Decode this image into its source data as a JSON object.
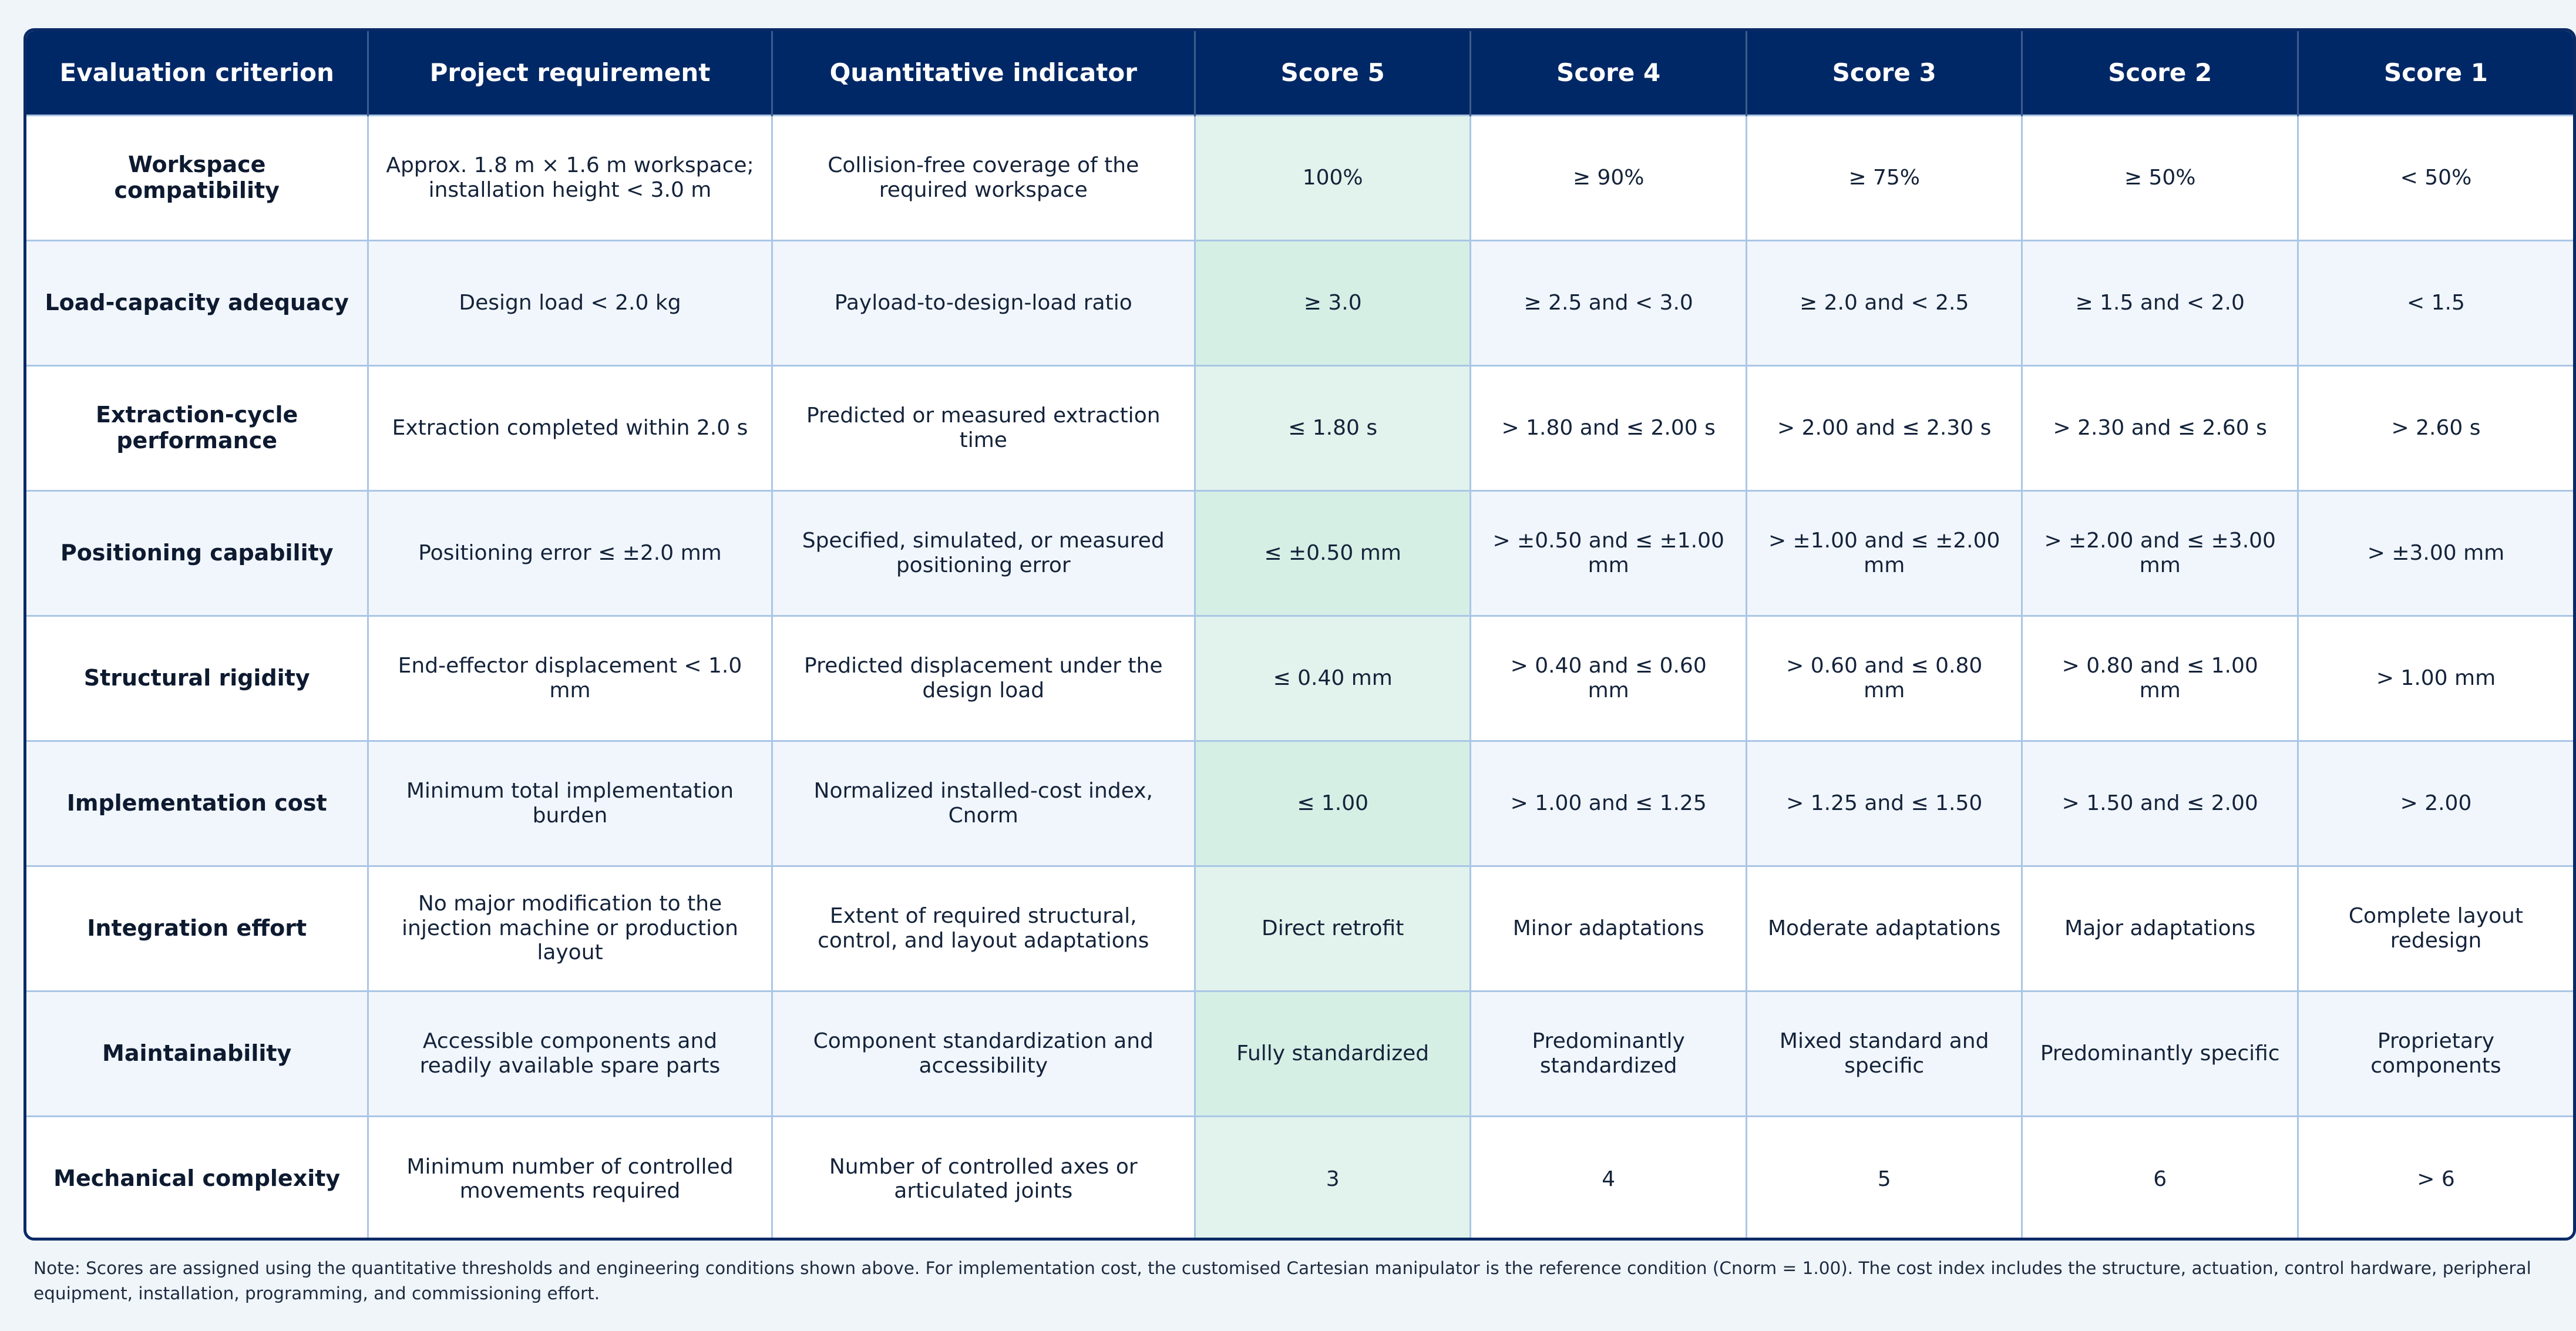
{
  "table": {
    "headers": [
      "Evaluation criterion",
      "Project requirement",
      "Quantitative indicator",
      "Score 5",
      "Score 4",
      "Score 3",
      "Score 2",
      "Score 1"
    ],
    "rows": [
      {
        "criterion": "Workspace compatibility",
        "requirement": "Approx. 1.8 m × 1.6 m workspace; installation height < 3.0 m",
        "indicator": "Collision-free coverage of the required workspace",
        "score5": "100%",
        "score4": "≥ 90%",
        "score3": "≥ 75%",
        "score2": "≥ 50%",
        "score1": "< 50%"
      },
      {
        "criterion": "Load-capacity adequacy",
        "requirement": "Design load < 2.0 kg",
        "indicator": "Payload-to-design-load ratio",
        "score5": "≥ 3.0",
        "score4": "≥ 2.5 and < 3.0",
        "score3": "≥ 2.0 and < 2.5",
        "score2": "≥ 1.5 and < 2.0",
        "score1": "< 1.5"
      },
      {
        "criterion": "Extraction-cycle performance",
        "requirement": "Extraction completed within 2.0 s",
        "indicator": "Predicted or measured extraction time",
        "score5": "≤ 1.80 s",
        "score4": "> 1.80 and ≤ 2.00 s",
        "score3": "> 2.00 and ≤ 2.30 s",
        "score2": "> 2.30 and ≤ 2.60 s",
        "score1": "> 2.60 s"
      },
      {
        "criterion": "Positioning capability",
        "requirement": "Positioning error ≤ ±2.0 mm",
        "indicator": "Specified, simulated, or measured positioning error",
        "score5": "≤ ±0.50 mm",
        "score4": "> ±0.50 and ≤ ±1.00 mm",
        "score3": "> ±1.00 and ≤ ±2.00 mm",
        "score2": "> ±2.00 and ≤ ±3.00 mm",
        "score1": "> ±3.00 mm"
      },
      {
        "criterion": "Structural rigidity",
        "requirement": "End-effector displacement < 1.0 mm",
        "indicator": "Predicted displacement under the design load",
        "score5": "≤ 0.40 mm",
        "score4": "> 0.40 and ≤ 0.60 mm",
        "score3": "> 0.60 and ≤ 0.80 mm",
        "score2": "> 0.80 and ≤ 1.00 mm",
        "score1": "> 1.00 mm"
      },
      {
        "criterion": "Implementation cost",
        "requirement": "Minimum total implementation burden",
        "indicator": "Normalized installed-cost index, Cnorm",
        "score5": "≤ 1.00",
        "score4": "> 1.00 and ≤ 1.25",
        "score3": "> 1.25 and ≤ 1.50",
        "score2": "> 1.50 and ≤ 2.00",
        "score1": "> 2.00"
      },
      {
        "criterion": "Integration effort",
        "requirement": "No major modification to the injection machine or production layout",
        "indicator": "Extent of required structural, control, and layout adaptations",
        "score5": "Direct retrofit",
        "score4": "Minor adaptations",
        "score3": "Moderate adaptations",
        "score2": "Major adaptations",
        "score1": "Complete layout redesign"
      },
      {
        "criterion": "Maintainability",
        "requirement": "Accessible components and readily available spare parts",
        "indicator": "Component standardization and accessibility",
        "score5": "Fully standardized",
        "score4": "Predominantly standardized",
        "score3": "Mixed standard and specific",
        "score2": "Predominantly specific",
        "score1": "Proprietary components"
      },
      {
        "criterion": "Mechanical complexity",
        "requirement": "Minimum number of controlled movements required",
        "indicator": "Number of controlled axes or articulated joints",
        "score5": "3",
        "score4": "4",
        "score3": "5",
        "score2": "6",
        "score1": "> 6"
      }
    ]
  },
  "note": "Note: Scores are assigned using the quantitative thresholds and engineering conditions shown above. For implementation cost, the customised Cartesian manipulator is the reference condition (Cnorm = 1.00). The cost index includes the structure, actuation, control hardware, peripheral equipment, installation, programming, and commissioning effort.",
  "colors": {
    "header_bg": "#012866",
    "header_text": "#ffffff",
    "score5_highlight": "#e1f3ec",
    "zebra_row": "#f1f6fc",
    "grid_line": "#aac6e6",
    "border": "#0a2a66"
  }
}
